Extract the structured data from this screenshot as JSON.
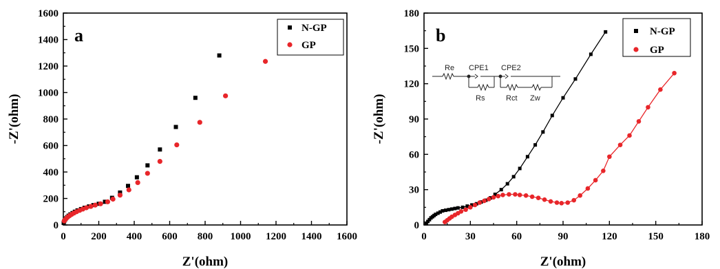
{
  "colors": {
    "n_gp": "#000000",
    "gp": "#e8262a"
  },
  "chart_data": [
    {
      "type": "scatter",
      "panel_label": "a",
      "xlabel": "Z'(ohm)",
      "ylabel": "-Z'(ohm)",
      "xlim": [
        0,
        1600
      ],
      "ylim": [
        0,
        1600
      ],
      "x_ticks": [
        "0",
        "200",
        "400",
        "600",
        "800",
        "1000",
        "1200",
        "1400",
        "1600"
      ],
      "y_ticks": [
        "0",
        "200",
        "400",
        "600",
        "800",
        "1000",
        "1200",
        "1400",
        "1600"
      ],
      "legend_position": "top-right",
      "series": [
        {
          "name": "N-GP",
          "marker": "square",
          "color": "#000000",
          "x": [
            2,
            5,
            10,
            15,
            22,
            30,
            40,
            52,
            65,
            80,
            100,
            120,
            145,
            170,
            200,
            235,
            275,
            320,
            365,
            415,
            475,
            545,
            635,
            745,
            880
          ],
          "y": [
            15,
            28,
            40,
            50,
            60,
            70,
            80,
            90,
            100,
            110,
            120,
            130,
            140,
            150,
            160,
            175,
            205,
            245,
            295,
            360,
            450,
            570,
            740,
            960,
            1280
          ]
        },
        {
          "name": "GP",
          "marker": "circle",
          "color": "#e8262a",
          "x": [
            5,
            10,
            17,
            25,
            35,
            47,
            60,
            75,
            92,
            110,
            130,
            155,
            180,
            210,
            250,
            280,
            320,
            370,
            420,
            475,
            545,
            640,
            770,
            915,
            1140
          ],
          "y": [
            30,
            40,
            50,
            60,
            70,
            80,
            90,
            100,
            110,
            120,
            130,
            140,
            150,
            160,
            175,
            195,
            225,
            265,
            320,
            390,
            480,
            605,
            775,
            975,
            1235
          ]
        }
      ]
    },
    {
      "type": "line",
      "panel_label": "b",
      "xlabel": "Z'(ohm)",
      "ylabel": "-Z'(ohm)",
      "xlim": [
        0,
        180
      ],
      "ylim": [
        0,
        180
      ],
      "x_ticks": [
        "0",
        "30",
        "60",
        "90",
        "120",
        "150",
        "180"
      ],
      "y_ticks": [
        "0",
        "30",
        "60",
        "90",
        "120",
        "150",
        "180"
      ],
      "legend_position": "top-right",
      "series": [
        {
          "name": "N-GP",
          "marker": "square",
          "color": "#000000",
          "x": [
            1.5,
            2.5,
            3.5,
            4.5,
            5.5,
            6.5,
            7.5,
            9,
            10.5,
            12,
            14,
            16,
            18,
            20,
            22,
            25,
            28,
            31,
            34,
            37,
            40,
            43,
            46,
            50,
            54,
            58,
            62,
            67,
            72,
            77,
            83,
            90,
            98,
            108,
            117.5
          ],
          "y": [
            1.5,
            3,
            4.5,
            6,
            7,
            8,
            9,
            10,
            11,
            12,
            12.5,
            13,
            13.5,
            14,
            14.5,
            15,
            16,
            17,
            18,
            19.5,
            21,
            23,
            26,
            30,
            35,
            41,
            48,
            58,
            68,
            79,
            93,
            108,
            124,
            145,
            164
          ]
        },
        {
          "name": "GP",
          "marker": "circle",
          "color": "#e8262a",
          "x": [
            13.5,
            15,
            16.5,
            18,
            20,
            22,
            24,
            27,
            30,
            33,
            36,
            39,
            42,
            45,
            48,
            51,
            55,
            59,
            62,
            66,
            70,
            74,
            78,
            82,
            86,
            89,
            93,
            97,
            101,
            106,
            111,
            116,
            120,
            127,
            133,
            139,
            145,
            153,
            162
          ],
          "y": [
            2.5,
            4,
            5.5,
            7,
            8.5,
            10,
            11.5,
            13,
            15,
            17,
            19,
            20.5,
            22,
            23.5,
            24.5,
            25.5,
            26,
            26,
            25.5,
            25,
            24,
            23,
            21.5,
            20,
            19,
            18.5,
            19,
            21,
            25,
            31,
            38,
            46,
            58,
            68,
            76,
            88,
            100,
            115,
            129
          ]
        }
      ],
      "inset_circuit_labels": [
        "Re",
        "CPE1",
        "CPE2",
        "Rs",
        "Rct",
        "Zw"
      ]
    }
  ]
}
